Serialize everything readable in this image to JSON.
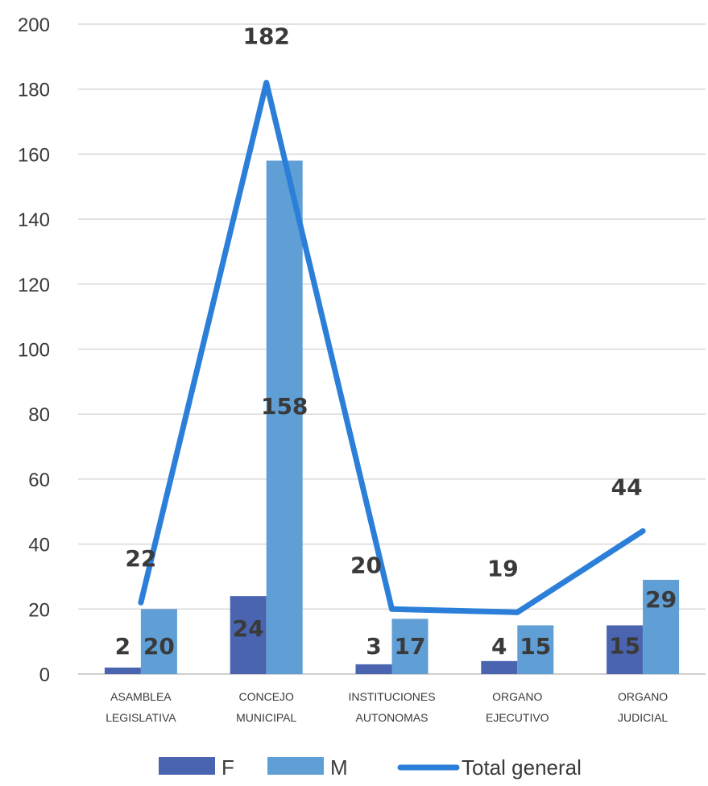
{
  "chart_data": {
    "type": "bar",
    "categories": [
      [
        "ASAMBLEA",
        "LEGISLATIVA"
      ],
      [
        "CONCEJO",
        "MUNICIPAL"
      ],
      [
        "INSTITUCIONES",
        "AUTONOMAS"
      ],
      [
        "ORGANO",
        "EJECUTIVO"
      ],
      [
        "ORGANO",
        "JUDICIAL"
      ]
    ],
    "series": [
      {
        "name": "F",
        "kind": "bar",
        "color": "#4a64b0",
        "values": [
          2,
          24,
          3,
          4,
          15
        ]
      },
      {
        "name": "M",
        "kind": "bar",
        "color": "#5f9fd6",
        "values": [
          20,
          158,
          17,
          15,
          29
        ]
      },
      {
        "name": "Total general",
        "kind": "line",
        "color": "#2b7fd9",
        "values": [
          22,
          182,
          20,
          19,
          44
        ]
      }
    ],
    "ylim": [
      0,
      200
    ],
    "yticks": [
      0,
      20,
      40,
      60,
      80,
      100,
      120,
      140,
      160,
      180,
      200
    ],
    "grid": true,
    "legend_position": "bottom"
  }
}
